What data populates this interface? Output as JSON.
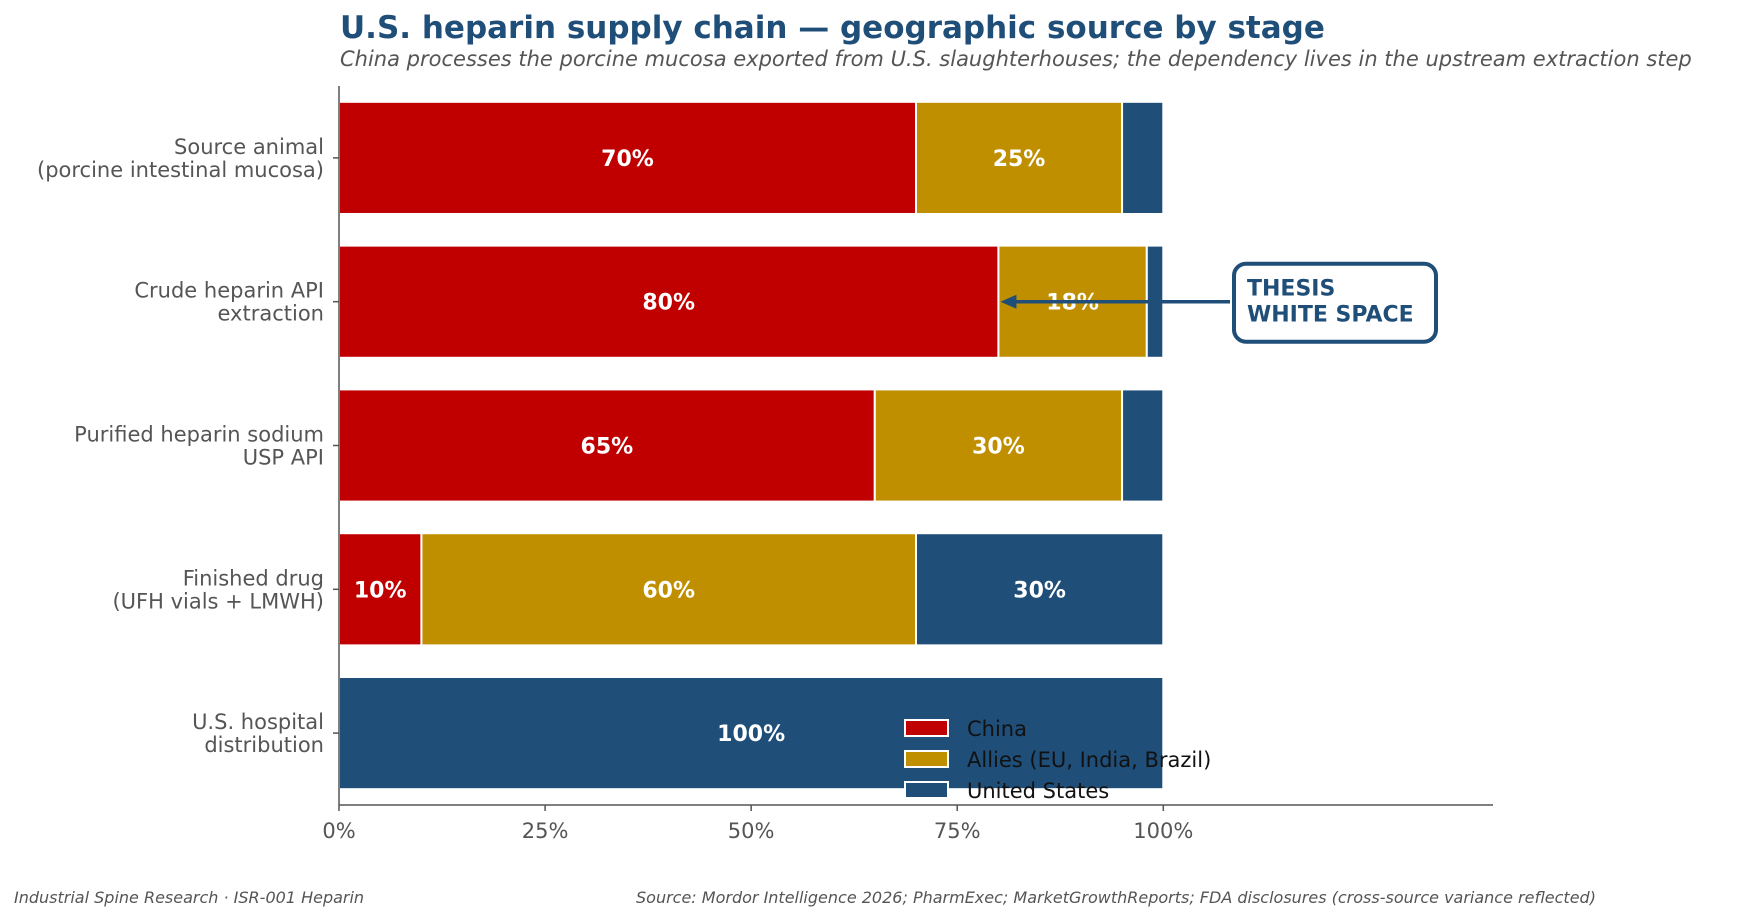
{
  "chart_data": {
    "type": "bar",
    "orientation": "horizontal",
    "stacked": true,
    "title": "U.S. heparin supply chain — geographic source by stage",
    "subtitle": "China processes the porcine mucosa exported from U.S. slaughterhouses; the dependency lives in the upstream extraction step",
    "categories": [
      [
        "Source animal",
        "(porcine intestinal mucosa)"
      ],
      [
        "Crude heparin API",
        "extraction"
      ],
      [
        "Purified heparin sodium",
        "USP API"
      ],
      [
        "Finished drug",
        "(UFH vials + LMWH)"
      ],
      [
        "U.S. hospital",
        "distribution"
      ]
    ],
    "series": [
      {
        "name": "China",
        "color": "#c00000",
        "values": [
          70,
          80,
          65,
          10,
          0
        ]
      },
      {
        "name": "Allies (EU, India, Brazil)",
        "color": "#bf8f00",
        "values": [
          25,
          18,
          30,
          60,
          0
        ]
      },
      {
        "name": "United States",
        "color": "#1f4e79",
        "values": [
          5,
          2,
          5,
          30,
          100
        ]
      }
    ],
    "xlim": [
      0,
      140
    ],
    "xticks": [
      0,
      25,
      50,
      75,
      100
    ],
    "xtick_labels": [
      "0%",
      "25%",
      "50%",
      "75%",
      "100%"
    ],
    "grid": false,
    "legend_position": "lower-center",
    "annotation": {
      "lines": [
        "THESIS",
        "WHITE SPACE"
      ],
      "target_category": 1,
      "target_x": 80
    }
  },
  "footer": {
    "left": "Industrial Spine Research · ISR-001 Heparin",
    "right": "Source: Mordor Intelligence 2026; PharmExec; MarketGrowthReports; FDA disclosures (cross-source variance reflected)"
  }
}
